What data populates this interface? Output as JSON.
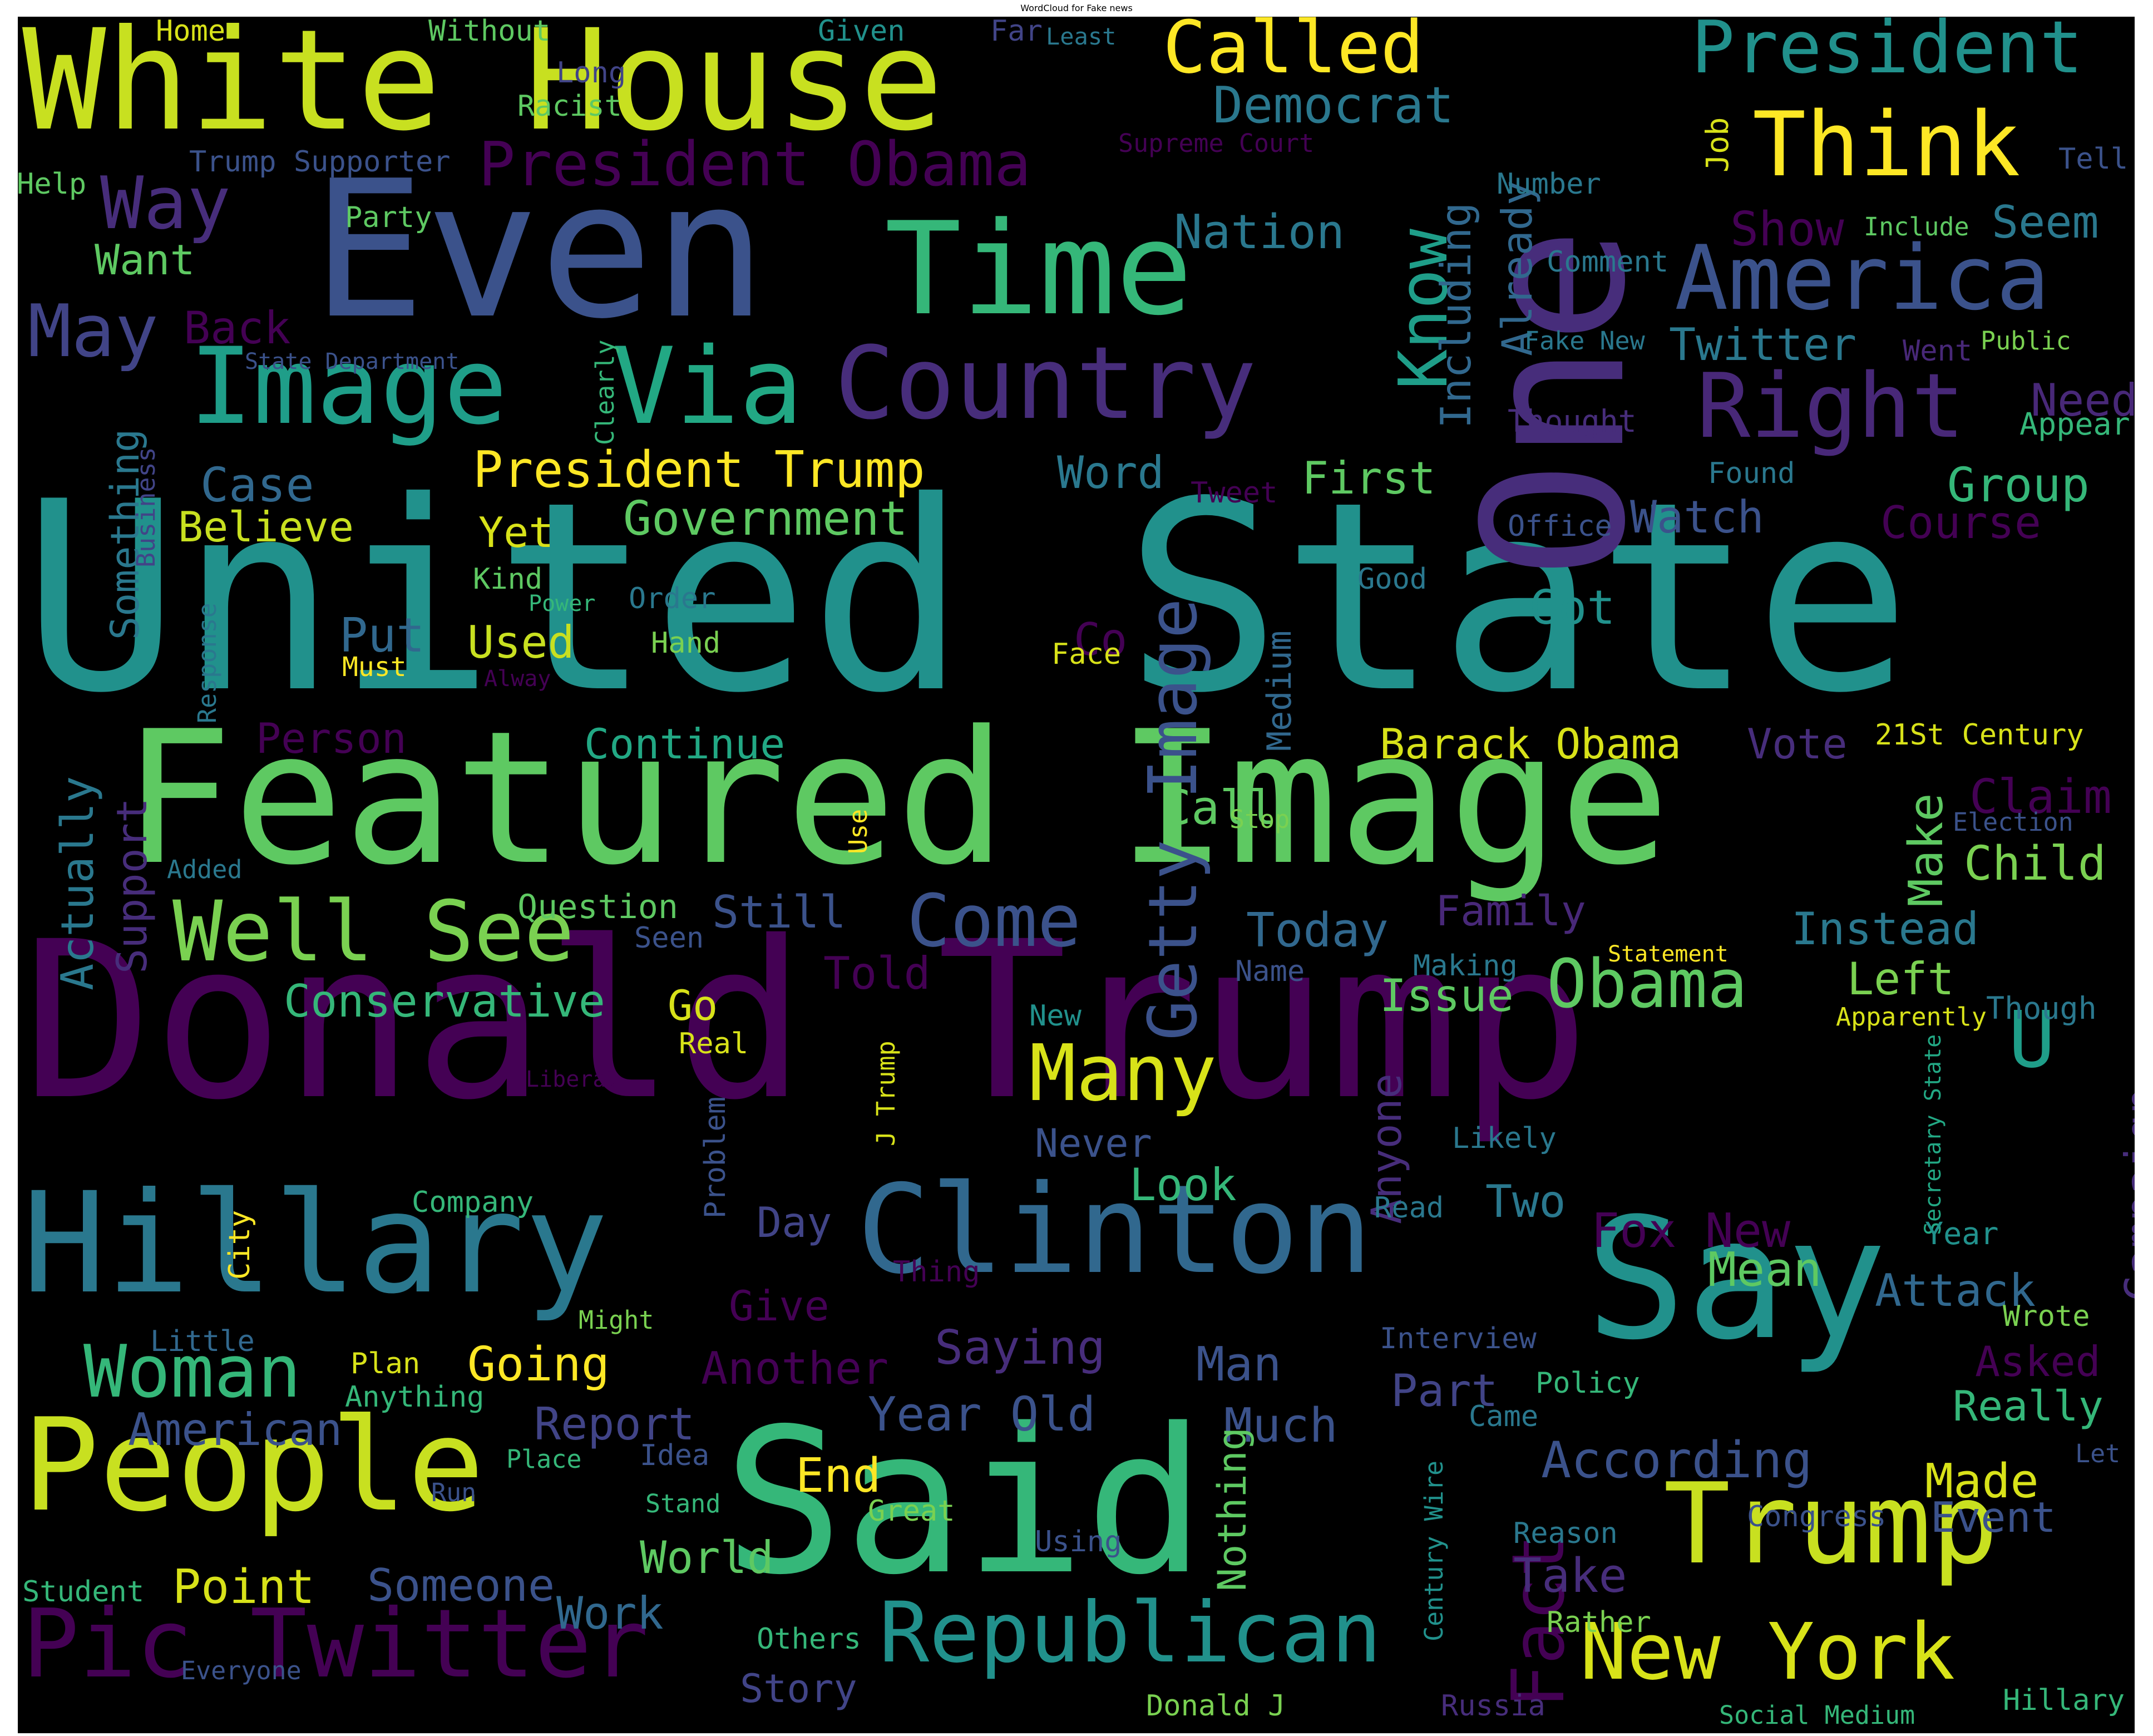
{
  "title": "WordCloud for Fake news",
  "words": [
    {
      "text": "United State",
      "color": "#21918c"
    },
    {
      "text": "Donald Trump",
      "color": "#440154"
    },
    {
      "text": "Featured Image",
      "color": "#5ec962"
    },
    {
      "text": "Even",
      "color": "#3b528b"
    },
    {
      "text": "One",
      "color": "#472d7b"
    },
    {
      "text": "Said",
      "color": "#35b779"
    },
    {
      "text": "Say",
      "color": "#21918c"
    },
    {
      "text": "White House",
      "color": "#c8e020"
    },
    {
      "text": "Hillary",
      "color": "#2a788e"
    },
    {
      "text": "Clinton",
      "color": "#31688e"
    },
    {
      "text": "Time",
      "color": "#35b779"
    },
    {
      "text": "People",
      "color": "#c8e020"
    },
    {
      "text": "Trump",
      "color": "#c8e020"
    },
    {
      "text": "Image",
      "color": "#1f9e89"
    },
    {
      "text": "Via",
      "color": "#22a884"
    },
    {
      "text": "Country",
      "color": "#472d7b"
    },
    {
      "text": "Pic Twitter",
      "color": "#440154"
    },
    {
      "text": "Republican",
      "color": "#21918c"
    },
    {
      "text": "New York",
      "color": "#d8e219"
    },
    {
      "text": "America",
      "color": "#3b528b"
    },
    {
      "text": "Right",
      "color": "#482878"
    },
    {
      "text": "Think",
      "color": "#fde725"
    },
    {
      "text": "President",
      "color": "#21918c"
    },
    {
      "text": "Called",
      "color": "#fde725"
    },
    {
      "text": "Well See",
      "color": "#7ad151"
    },
    {
      "text": "Woman",
      "color": "#35b779"
    },
    {
      "text": "Getty Image",
      "color": "#3b528b"
    },
    {
      "text": "Obama",
      "color": "#5ec962"
    },
    {
      "text": "Many",
      "color": "#d8e219"
    },
    {
      "text": "Know",
      "color": "#1f9e89"
    },
    {
      "text": "Fact",
      "color": "#440154"
    },
    {
      "text": "President Obama",
      "color": "#440154"
    },
    {
      "text": "Way",
      "color": "#472d7b"
    },
    {
      "text": "May",
      "color": "#414487"
    },
    {
      "text": "U",
      "color": "#1f9e89"
    },
    {
      "text": "Come",
      "color": "#3b528b"
    },
    {
      "text": "Democrat",
      "color": "#2a788e"
    },
    {
      "text": "President Trump",
      "color": "#fde725"
    },
    {
      "text": "Government",
      "color": "#5ec962"
    },
    {
      "text": "Year Old",
      "color": "#3b528b"
    },
    {
      "text": "According",
      "color": "#3b528b"
    },
    {
      "text": "American",
      "color": "#3b528b"
    },
    {
      "text": "Point",
      "color": "#d8e219"
    },
    {
      "text": "Someone",
      "color": "#3b528b"
    },
    {
      "text": "Work",
      "color": "#31688e"
    },
    {
      "text": "World",
      "color": "#5ec962"
    },
    {
      "text": "Report",
      "color": "#414487"
    },
    {
      "text": "Going",
      "color": "#fde725"
    },
    {
      "text": "Another",
      "color": "#440154"
    },
    {
      "text": "Saying",
      "color": "#472d7b"
    },
    {
      "text": "Conservative",
      "color": "#35b779"
    },
    {
      "text": "Continue",
      "color": "#22a884"
    },
    {
      "text": "Barack Obama",
      "color": "#d8e219"
    },
    {
      "text": "Look",
      "color": "#35b779"
    },
    {
      "text": "Nation",
      "color": "#2a788e"
    },
    {
      "text": "Including",
      "color": "#31688e"
    },
    {
      "text": "Already",
      "color": "#31688e"
    },
    {
      "text": "Twitter",
      "color": "#2a788e"
    },
    {
      "text": "Need",
      "color": "#482878"
    },
    {
      "text": "Seem",
      "color": "#2a788e"
    },
    {
      "text": "Show",
      "color": "#440154"
    },
    {
      "text": "Group",
      "color": "#35b779"
    },
    {
      "text": "Course",
      "color": "#440154"
    },
    {
      "text": "Watch",
      "color": "#3b528b"
    },
    {
      "text": "First",
      "color": "#5ec962"
    },
    {
      "text": "Word",
      "color": "#2a788e"
    },
    {
      "text": "Case",
      "color": "#31688e"
    },
    {
      "text": "Believe",
      "color": "#c8e020"
    },
    {
      "text": "Yet",
      "color": "#d8e219"
    },
    {
      "text": "Back",
      "color": "#440154"
    },
    {
      "text": "Want",
      "color": "#5ec962"
    },
    {
      "text": "Something",
      "color": "#2a788e"
    },
    {
      "text": "Put",
      "color": "#31688e"
    },
    {
      "text": "Used",
      "color": "#c8e020"
    },
    {
      "text": "Got",
      "color": "#21918c"
    },
    {
      "text": "Medium",
      "color": "#31688e"
    },
    {
      "text": "Call",
      "color": "#5ec962"
    },
    {
      "text": "Vote",
      "color": "#472d7b"
    },
    {
      "text": "Claim",
      "color": "#440154"
    },
    {
      "text": "Make",
      "color": "#5ec962"
    },
    {
      "text": "Child",
      "color": "#7ad151"
    },
    {
      "text": "Person",
      "color": "#440154"
    },
    {
      "text": "Support",
      "color": "#472d7b"
    },
    {
      "text": "Actually",
      "color": "#2a788e"
    },
    {
      "text": "Still",
      "color": "#3b528b"
    },
    {
      "text": "Question",
      "color": "#5ec962"
    },
    {
      "text": "Today",
      "color": "#31688e"
    },
    {
      "text": "Family",
      "color": "#482878"
    },
    {
      "text": "Instead",
      "color": "#2a788e"
    },
    {
      "text": "Left",
      "color": "#7ad151"
    },
    {
      "text": "Issue",
      "color": "#5ec962"
    },
    {
      "text": "Told",
      "color": "#440154"
    },
    {
      "text": "Go",
      "color": "#d8e219"
    },
    {
      "text": "Though",
      "color": "#2a788e"
    },
    {
      "text": "Campaign",
      "color": "#472d7b"
    },
    {
      "text": "Attack",
      "color": "#31688e"
    },
    {
      "text": "Mean",
      "color": "#5ec962"
    },
    {
      "text": "Fox New",
      "color": "#440154"
    },
    {
      "text": "Two",
      "color": "#2a788e"
    },
    {
      "text": "Day",
      "color": "#414487"
    },
    {
      "text": "Never",
      "color": "#3b528b"
    },
    {
      "text": "Anyone",
      "color": "#472d7b"
    },
    {
      "text": "Give",
      "color": "#440154"
    },
    {
      "text": "Man",
      "color": "#3b528b"
    },
    {
      "text": "Much",
      "color": "#3b528b"
    },
    {
      "text": "Part",
      "color": "#414487"
    },
    {
      "text": "Nothing",
      "color": "#5ec962"
    },
    {
      "text": "End",
      "color": "#fde725"
    },
    {
      "text": "Really",
      "color": "#35b779"
    },
    {
      "text": "Made",
      "color": "#d8e219"
    },
    {
      "text": "Event",
      "color": "#3b528b"
    },
    {
      "text": "Asked",
      "color": "#440154"
    },
    {
      "text": "Take",
      "color": "#472d7b"
    },
    {
      "text": "Story",
      "color": "#414487"
    },
    {
      "text": "Job",
      "color": "#d8e219"
    },
    {
      "text": "Co",
      "color": "#440154"
    },
    {
      "text": "Home",
      "color": "#d8e219"
    },
    {
      "text": "Without",
      "color": "#5ec962"
    },
    {
      "text": "Given",
      "color": "#21918c"
    },
    {
      "text": "Far",
      "color": "#414487"
    },
    {
      "text": "Least",
      "color": "#2a788e"
    },
    {
      "text": "Long",
      "color": "#414487"
    },
    {
      "text": "Racist",
      "color": "#5ec962"
    },
    {
      "text": "Supreme Court",
      "color": "#440154"
    },
    {
      "text": "Trump Supporter",
      "color": "#3b528b"
    },
    {
      "text": "Help",
      "color": "#5ec962"
    },
    {
      "text": "Party",
      "color": "#5ec962"
    },
    {
      "text": "Number",
      "color": "#2a788e"
    },
    {
      "text": "Tell",
      "color": "#3b528b"
    },
    {
      "text": "Include",
      "color": "#5ec962"
    },
    {
      "text": "Comment",
      "color": "#2a788e"
    },
    {
      "text": "Fake New",
      "color": "#2a788e"
    },
    {
      "text": "Public",
      "color": "#7ad151"
    },
    {
      "text": "Went",
      "color": "#482878"
    },
    {
      "text": "Appear",
      "color": "#35b779"
    },
    {
      "text": "Thought",
      "color": "#472d7b"
    },
    {
      "text": "Found",
      "color": "#2a788e"
    },
    {
      "text": "Tweet",
      "color": "#440154"
    },
    {
      "text": "Office",
      "color": "#3b528b"
    },
    {
      "text": "State Department",
      "color": "#3b528b"
    },
    {
      "text": "Clearly",
      "color": "#35b779"
    },
    {
      "text": "Business",
      "color": "#414487"
    },
    {
      "text": "Kind",
      "color": "#5ec962"
    },
    {
      "text": "Power",
      "color": "#35b779"
    },
    {
      "text": "Order",
      "color": "#2a788e"
    },
    {
      "text": "Hand",
      "color": "#7ad151"
    },
    {
      "text": "Must",
      "color": "#fde725"
    },
    {
      "text": "Alway",
      "color": "#440154"
    },
    {
      "text": "Response",
      "color": "#2a788e"
    },
    {
      "text": "Face",
      "color": "#d8e219"
    },
    {
      "text": "Good",
      "color": "#2a788e"
    },
    {
      "text": "Trump Campaign",
      "color": "#21918c"
    },
    {
      "text": "21St Century",
      "color": "#d8e219"
    },
    {
      "text": "Election",
      "color": "#3b528b"
    },
    {
      "text": "Stop",
      "color": "#7ad151"
    },
    {
      "text": "Use",
      "color": "#fde725"
    },
    {
      "text": "Added",
      "color": "#2a788e"
    },
    {
      "text": "Seen",
      "color": "#3b528b"
    },
    {
      "text": "Making",
      "color": "#2a788e"
    },
    {
      "text": "Statement",
      "color": "#fde725"
    },
    {
      "text": "Name",
      "color": "#3b528b"
    },
    {
      "text": "Apparently",
      "color": "#d8e219"
    },
    {
      "text": "New",
      "color": "#21918c"
    },
    {
      "text": "Real",
      "color": "#d8e219"
    },
    {
      "text": "Liberal",
      "color": "#440154"
    },
    {
      "text": "J Trump",
      "color": "#d8e219"
    },
    {
      "text": "Problem",
      "color": "#3b528b"
    },
    {
      "text": "Likely",
      "color": "#2a788e"
    },
    {
      "text": "Secretary State",
      "color": "#22a884"
    },
    {
      "text": "Year",
      "color": "#21918c"
    },
    {
      "text": "Wrote",
      "color": "#7ad151"
    },
    {
      "text": "Company",
      "color": "#35b779"
    },
    {
      "text": "City",
      "color": "#fde725"
    },
    {
      "text": "Thing",
      "color": "#440154"
    },
    {
      "text": "Read",
      "color": "#2a788e"
    },
    {
      "text": "Little",
      "color": "#31688e"
    },
    {
      "text": "Might",
      "color": "#7ad151"
    },
    {
      "text": "Plan",
      "color": "#d8e219"
    },
    {
      "text": "Anything",
      "color": "#35b779"
    },
    {
      "text": "Interview",
      "color": "#3b528b"
    },
    {
      "text": "Policy",
      "color": "#35b779"
    },
    {
      "text": "Came",
      "color": "#2a788e"
    },
    {
      "text": "Century Wire",
      "color": "#21918c"
    },
    {
      "text": "Let",
      "color": "#3b528b"
    },
    {
      "text": "Place",
      "color": "#35b779"
    },
    {
      "text": "Idea",
      "color": "#3b528b"
    },
    {
      "text": "Run",
      "color": "#3b528b"
    },
    {
      "text": "Stand",
      "color": "#35b779"
    },
    {
      "text": "Great",
      "color": "#7ad151"
    },
    {
      "text": "Using",
      "color": "#3b528b"
    },
    {
      "text": "Reason",
      "color": "#2a788e"
    },
    {
      "text": "Congress",
      "color": "#3b528b"
    },
    {
      "text": "Student",
      "color": "#35b779"
    },
    {
      "text": "Rather",
      "color": "#7ad151"
    },
    {
      "text": "Others",
      "color": "#35b779"
    },
    {
      "text": "Everyone",
      "color": "#3b528b"
    },
    {
      "text": "Donald J",
      "color": "#7ad151"
    },
    {
      "text": "Russia",
      "color": "#472d7b"
    },
    {
      "text": "Social Medium",
      "color": "#35b779"
    },
    {
      "text": "Hillary",
      "color": "#35b779"
    }
  ]
}
